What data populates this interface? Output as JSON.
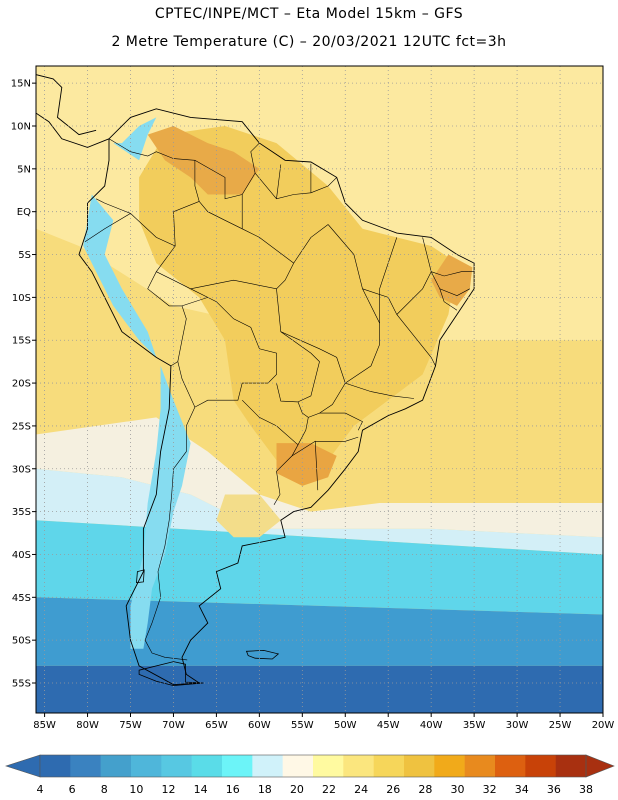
{
  "header": {
    "title": "CPTEC/INPE/MCT –  Eta Model 15km – GFS",
    "subtitle": "2 Metre Temperature (C) – 20/03/2021 12UTC fct=3h"
  },
  "map": {
    "lat_labels": [
      "15N",
      "10N",
      "5N",
      "EQ",
      "5S",
      "10S",
      "15S",
      "20S",
      "25S",
      "30S",
      "35S",
      "40S",
      "45S",
      "50S",
      "55S"
    ],
    "lon_labels": [
      "85W",
      "80W",
      "75W",
      "70W",
      "65W",
      "60W",
      "55W",
      "50W",
      "45W",
      "40W",
      "35W",
      "30W",
      "25W",
      "20W"
    ],
    "lat_range": [
      -58.5,
      17
    ],
    "lon_range": [
      -86,
      -20
    ],
    "grid": "dotted"
  },
  "colorbar": {
    "labels": [
      "4",
      "6",
      "8",
      "10",
      "12",
      "14",
      "16",
      "18",
      "20",
      "22",
      "24",
      "26",
      "28",
      "30",
      "32",
      "34",
      "36",
      "38"
    ],
    "colors": [
      "#2e6bb0",
      "#3a82c0",
      "#44a0cc",
      "#4fb6da",
      "#57c8e2",
      "#5adce8",
      "#6cf4f8",
      "#d0f2fa",
      "#fff8e6",
      "#fffaa0",
      "#fbe67e",
      "#f6d65a",
      "#efc240",
      "#f1aa1a",
      "#e88a1e",
      "#dd6010",
      "#c84208",
      "#a83010"
    ]
  },
  "continent": [
    [
      -77.5,
      8.5
    ],
    [
      -75,
      11
    ],
    [
      -72,
      12
    ],
    [
      -68,
      11
    ],
    [
      -62,
      10.5
    ],
    [
      -60,
      8
    ],
    [
      -57,
      6
    ],
    [
      -54,
      5.8
    ],
    [
      -51,
      4
    ],
    [
      -50,
      1
    ],
    [
      -48,
      -1
    ],
    [
      -44,
      -2.5
    ],
    [
      -40,
      -3
    ],
    [
      -37,
      -5
    ],
    [
      -35,
      -6
    ],
    [
      -35,
      -9
    ],
    [
      -37,
      -12
    ],
    [
      -39,
      -15
    ],
    [
      -39.5,
      -18
    ],
    [
      -41,
      -22
    ],
    [
      -43,
      -23
    ],
    [
      -45,
      -23.8
    ],
    [
      -48,
      -25.5
    ],
    [
      -48.5,
      -28
    ],
    [
      -50,
      -30
    ],
    [
      -52,
      -32.5
    ],
    [
      -54,
      -34.5
    ],
    [
      -56,
      -35
    ],
    [
      -57.5,
      -36
    ],
    [
      -57,
      -38
    ],
    [
      -62,
      -39
    ],
    [
      -62.5,
      -41
    ],
    [
      -65,
      -42
    ],
    [
      -64.5,
      -44
    ],
    [
      -67,
      -46
    ],
    [
      -66,
      -48
    ],
    [
      -68,
      -50
    ],
    [
      -69,
      -52
    ],
    [
      -68.5,
      -54
    ],
    [
      -67,
      -55
    ],
    [
      -70,
      -55.2
    ],
    [
      -74,
      -53
    ],
    [
      -75,
      -50
    ],
    [
      -75.5,
      -46
    ],
    [
      -73.5,
      -42
    ],
    [
      -73.5,
      -37
    ],
    [
      -72,
      -33
    ],
    [
      -71.5,
      -28
    ],
    [
      -70.5,
      -23
    ],
    [
      -70.3,
      -18
    ],
    [
      -72,
      -17
    ],
    [
      -76,
      -14
    ],
    [
      -77.5,
      -11
    ],
    [
      -79.5,
      -7
    ],
    [
      -81,
      -5
    ],
    [
      -80,
      -2
    ],
    [
      -80,
      1
    ],
    [
      -78,
      3
    ],
    [
      -77.5,
      6
    ]
  ],
  "central_america": [
    [
      -77.5,
      8.5
    ],
    [
      -80,
      7.5
    ],
    [
      -83,
      8.5
    ],
    [
      -84.5,
      10.5
    ],
    [
      -86,
      11.5
    ],
    [
      -86,
      16
    ],
    [
      -84,
      15.5
    ],
    [
      -83,
      14.5
    ],
    [
      -83.5,
      11
    ],
    [
      -81,
      9
    ],
    [
      -79,
      9.5
    ]
  ],
  "islands": [
    [
      [
        -74,
        -53.5
      ],
      [
        -70,
        -52.5
      ],
      [
        -68.6,
        -52.8
      ],
      [
        -68.6,
        -54.9
      ],
      [
        -66.5,
        -55
      ],
      [
        -70,
        -55.3
      ],
      [
        -72,
        -54.8
      ],
      [
        -74,
        -54
      ]
    ],
    [
      [
        -61.5,
        -51.3
      ],
      [
        -59.5,
        -51.2
      ],
      [
        -57.8,
        -51.6
      ],
      [
        -58.5,
        -52.2
      ],
      [
        -60.5,
        -52.1
      ],
      [
        -61.3,
        -51.8
      ]
    ],
    [
      [
        -74.2,
        -42
      ],
      [
        -73.4,
        -41.8
      ],
      [
        -73.5,
        -43.2
      ],
      [
        -74.3,
        -43.3
      ]
    ]
  ],
  "borders": [
    [
      [
        -77.5,
        8.5
      ],
      [
        -75,
        7
      ],
      [
        -73,
        6.5
      ],
      [
        -72,
        7
      ],
      [
        -70,
        6.2
      ],
      [
        -67.5,
        6
      ],
      [
        -67.5,
        3
      ],
      [
        -67,
        1.2
      ],
      [
        -70,
        0
      ],
      [
        -69.8,
        -4
      ],
      [
        -72,
        -3
      ],
      [
        -75,
        -0.2
      ],
      [
        -78,
        1
      ],
      [
        -79,
        1.5
      ]
    ],
    [
      [
        -67.5,
        6
      ],
      [
        -64,
        4
      ],
      [
        -64,
        1.5
      ],
      [
        -62,
        2
      ],
      [
        -60.5,
        4.5
      ],
      [
        -61,
        7
      ],
      [
        -60,
        8
      ]
    ],
    [
      [
        -60.5,
        4.5
      ],
      [
        -58,
        1.5
      ],
      [
        -56,
        2
      ],
      [
        -54,
        2.2
      ],
      [
        -52,
        3
      ],
      [
        -51,
        4
      ]
    ],
    [
      [
        -58,
        1.5
      ],
      [
        -57.5,
        5.5
      ]
    ],
    [
      [
        -54,
        2.2
      ],
      [
        -54,
        5.6
      ]
    ],
    [
      [
        -69.8,
        -4
      ],
      [
        -72,
        -7
      ],
      [
        -73,
        -9
      ],
      [
        -70.5,
        -11
      ],
      [
        -69,
        -11
      ],
      [
        -68.5,
        -12.5
      ],
      [
        -69,
        -15
      ],
      [
        -69.5,
        -17.5
      ],
      [
        -70.3,
        -18
      ]
    ],
    [
      [
        -75,
        -0.2
      ],
      [
        -78,
        -2
      ],
      [
        -80.3,
        -3.5
      ]
    ],
    [
      [
        -69,
        -11
      ],
      [
        -66,
        -10
      ],
      [
        -65,
        -10.5
      ],
      [
        -63,
        -12.5
      ],
      [
        -61,
        -13.5
      ],
      [
        -60,
        -16
      ],
      [
        -58,
        -16.5
      ],
      [
        -58,
        -19
      ],
      [
        -59,
        -20
      ],
      [
        -62,
        -20
      ],
      [
        -62.5,
        -22
      ],
      [
        -64,
        -22
      ],
      [
        -66,
        -22
      ],
      [
        -67.5,
        -22.8
      ],
      [
        -69,
        -19.5
      ],
      [
        -69.5,
        -17.5
      ]
    ],
    [
      [
        -67.5,
        -22.8
      ],
      [
        -68.5,
        -25
      ],
      [
        -68.5,
        -28
      ],
      [
        -70,
        -30
      ],
      [
        -70.2,
        -33
      ],
      [
        -70.5,
        -36
      ],
      [
        -71,
        -39
      ],
      [
        -71.8,
        -42
      ],
      [
        -71.5,
        -45
      ],
      [
        -72.5,
        -48
      ],
      [
        -73.3,
        -50
      ],
      [
        -72.5,
        -51.5
      ],
      [
        -71,
        -52
      ],
      [
        -68.4,
        -52.3
      ]
    ],
    [
      [
        -62,
        -22
      ],
      [
        -60,
        -24
      ],
      [
        -58,
        -25
      ],
      [
        -55.5,
        -27.2
      ],
      [
        -54.6,
        -25.5
      ],
      [
        -54.3,
        -24
      ],
      [
        -55,
        -23.5
      ],
      [
        -55.5,
        -22.2
      ],
      [
        -57.5,
        -22.1
      ],
      [
        -58,
        -20
      ]
    ],
    [
      [
        -55.5,
        -27.2
      ],
      [
        -56.2,
        -28.5
      ],
      [
        -58,
        -30.3
      ],
      [
        -57.6,
        -33
      ],
      [
        -58.3,
        -34.2
      ]
    ],
    [
      [
        -56.2,
        -28.5
      ],
      [
        -53.5,
        -26.8
      ],
      [
        -53.2,
        -32.5
      ]
    ],
    [
      [
        -72,
        -7
      ],
      [
        -70,
        -8
      ],
      [
        -68,
        -9
      ],
      [
        -66,
        -10
      ]
    ],
    [
      [
        -68,
        -9
      ],
      [
        -63,
        -8
      ],
      [
        -58,
        -9
      ],
      [
        -57,
        -8
      ],
      [
        -56,
        -6
      ],
      [
        -54,
        -3
      ],
      [
        -52,
        -1.5
      ]
    ],
    [
      [
        -58,
        -9
      ],
      [
        -57.5,
        -14
      ],
      [
        -53,
        -16
      ],
      [
        -51,
        -17
      ],
      [
        -50,
        -20
      ],
      [
        -47,
        -21
      ],
      [
        -44.5,
        -21.5
      ],
      [
        -42,
        -21.8
      ]
    ],
    [
      [
        -57.5,
        -14
      ],
      [
        -54,
        -16.5
      ],
      [
        -53,
        -17.5
      ],
      [
        -53.5,
        -19.5
      ],
      [
        -54,
        -21.5
      ],
      [
        -55.5,
        -22.2
      ]
    ],
    [
      [
        -50,
        -20
      ],
      [
        -51.5,
        -22.5
      ],
      [
        -53,
        -23.5
      ],
      [
        -54.3,
        -24
      ]
    ],
    [
      [
        -53,
        -23.5
      ],
      [
        -50,
        -23.5
      ],
      [
        -48,
        -24.5
      ],
      [
        -48.5,
        -25.5
      ]
    ],
    [
      [
        -53.5,
        -26.8
      ],
      [
        -50,
        -26.8
      ],
      [
        -48.5,
        -26.3
      ]
    ],
    [
      [
        -52,
        -1.5
      ],
      [
        -49,
        -5
      ],
      [
        -48,
        -9
      ],
      [
        -46,
        -13
      ],
      [
        -46,
        -15.5
      ],
      [
        -47,
        -18
      ],
      [
        -50,
        -20
      ]
    ],
    [
      [
        -48,
        -9
      ],
      [
        -45,
        -10
      ],
      [
        -44,
        -12
      ],
      [
        -42,
        -14.5
      ],
      [
        -40,
        -17
      ],
      [
        -39.5,
        -18
      ]
    ],
    [
      [
        -44,
        -12
      ],
      [
        -41,
        -9
      ],
      [
        -40,
        -7
      ],
      [
        -41,
        -3
      ]
    ],
    [
      [
        -46,
        -13
      ],
      [
        -46,
        -9
      ],
      [
        -44,
        -3
      ]
    ],
    [
      [
        -40,
        -7
      ],
      [
        -38.5,
        -7.5
      ],
      [
        -36.5,
        -7
      ],
      [
        -35,
        -7
      ]
    ],
    [
      [
        -40,
        -7
      ],
      [
        -39,
        -9
      ],
      [
        -37,
        -9.8
      ],
      [
        -35.5,
        -9
      ]
    ],
    [
      [
        -39,
        -9
      ],
      [
        -38.5,
        -10.5
      ],
      [
        -37,
        -11.5
      ]
    ],
    [
      [
        -56,
        -6
      ],
      [
        -60,
        -3
      ],
      [
        -62,
        -2
      ],
      [
        -64,
        -1
      ],
      [
        -66,
        0
      ],
      [
        -67,
        1.2
      ]
    ],
    [
      [
        -62,
        -2
      ],
      [
        -62,
        2
      ]
    ]
  ],
  "temperature_zones": [
    {
      "color": "#fce9a0",
      "path": [
        [
          -86,
          17
        ],
        [
          -20,
          17
        ],
        [
          -20,
          -15
        ],
        [
          -52,
          -15
        ],
        [
          -70,
          -11
        ],
        [
          -81,
          -4
        ],
        [
          -86,
          -2
        ]
      ]
    },
    {
      "color": "#f2cd5c",
      "path": [
        [
          -64,
          10
        ],
        [
          -58,
          8
        ],
        [
          -52,
          3
        ],
        [
          -48,
          -2
        ],
        [
          -44,
          -3
        ],
        [
          -40,
          -4
        ],
        [
          -37,
          -6
        ],
        [
          -38,
          -12
        ],
        [
          -41,
          -19
        ],
        [
          -45,
          -22
        ],
        [
          -49,
          -25
        ],
        [
          -52,
          -29
        ],
        [
          -55,
          -30
        ],
        [
          -58,
          -29
        ],
        [
          -61,
          -25
        ],
        [
          -63,
          -22
        ],
        [
          -64,
          -15
        ],
        [
          -67,
          -10
        ],
        [
          -72,
          -6
        ],
        [
          -74,
          -1
        ],
        [
          -74,
          4
        ],
        [
          -71,
          9
        ]
      ]
    },
    {
      "color": "#f5f0e0",
      "path": [
        [
          -86,
          -26
        ],
        [
          -72,
          -24
        ],
        [
          -66,
          -28
        ],
        [
          -60,
          -33
        ],
        [
          -54,
          -35
        ],
        [
          -46,
          -34
        ],
        [
          -20,
          -34
        ],
        [
          -20,
          -38
        ],
        [
          -40,
          -37
        ],
        [
          -52,
          -37
        ],
        [
          -60,
          -37
        ],
        [
          -68,
          -33
        ],
        [
          -76,
          -31
        ],
        [
          -86,
          -30
        ]
      ]
    },
    {
      "color": "#d3eff7",
      "path": [
        [
          -86,
          -30
        ],
        [
          -76,
          -31
        ],
        [
          -68,
          -33
        ],
        [
          -60,
          -37
        ],
        [
          -52,
          -37
        ],
        [
          -40,
          -37
        ],
        [
          -20,
          -38
        ],
        [
          -20,
          -40
        ],
        [
          -86,
          -36
        ]
      ]
    },
    {
      "color": "#5fd6ea",
      "path": [
        [
          -86,
          -36
        ],
        [
          -20,
          -40
        ],
        [
          -20,
          -47
        ],
        [
          -86,
          -45
        ]
      ]
    },
    {
      "color": "#3f9cd0",
      "path": [
        [
          -86,
          -45
        ],
        [
          -20,
          -47
        ],
        [
          -20,
          -53
        ],
        [
          -86,
          -53
        ]
      ]
    },
    {
      "color": "#2e6bb0",
      "path": [
        [
          -86,
          -53
        ],
        [
          -20,
          -53
        ],
        [
          -20,
          -58.5
        ],
        [
          -86,
          -58.5
        ]
      ]
    },
    {
      "color": "#e8aa48",
      "path": [
        [
          -73,
          9
        ],
        [
          -70,
          10
        ],
        [
          -66,
          8
        ],
        [
          -63,
          7
        ],
        [
          -60,
          5
        ],
        [
          -62,
          2
        ],
        [
          -66,
          2
        ],
        [
          -68,
          4
        ],
        [
          -71,
          6
        ]
      ]
    },
    {
      "color": "#e8aa48",
      "path": [
        [
          -38,
          -5
        ],
        [
          -35.2,
          -6.5
        ],
        [
          -35.5,
          -9
        ],
        [
          -37,
          -11
        ],
        [
          -39,
          -10
        ],
        [
          -40,
          -8
        ]
      ]
    },
    {
      "color": "#e9a542",
      "path": [
        [
          -58,
          -27
        ],
        [
          -54,
          -27
        ],
        [
          -51,
          -28.5
        ],
        [
          -52,
          -31
        ],
        [
          -55,
          -32
        ],
        [
          -58,
          -30.5
        ]
      ]
    },
    {
      "color": "#f3dd8a",
      "path": [
        [
          -64,
          -33
        ],
        [
          -60,
          -33
        ],
        [
          -57.5,
          -36
        ],
        [
          -60,
          -38
        ],
        [
          -63,
          -38
        ],
        [
          -65,
          -36
        ]
      ]
    },
    {
      "color": "#86dcf0",
      "path": [
        [
          -71.5,
          -18
        ],
        [
          -70,
          -22
        ],
        [
          -68,
          -27
        ],
        [
          -69,
          -32
        ],
        [
          -70,
          -35
        ],
        [
          -71,
          -40
        ],
        [
          -72.5,
          -44
        ],
        [
          -73,
          -48
        ],
        [
          -73.5,
          -51
        ],
        [
          -75,
          -51
        ],
        [
          -75,
          -46
        ],
        [
          -73.5,
          -40
        ],
        [
          -73,
          -34
        ],
        [
          -72,
          -28
        ],
        [
          -71.5,
          -23
        ]
      ]
    },
    {
      "color": "#86dcf0",
      "path": [
        [
          -79.5,
          2
        ],
        [
          -77,
          -1
        ],
        [
          -78,
          -5
        ],
        [
          -76,
          -9
        ],
        [
          -73,
          -14
        ],
        [
          -72,
          -17
        ],
        [
          -74,
          -15
        ],
        [
          -77,
          -11
        ],
        [
          -79,
          -7
        ],
        [
          -80.5,
          -4
        ],
        [
          -80,
          -1
        ]
      ]
    },
    {
      "color": "#86dcf0",
      "path": [
        [
          -77,
          8
        ],
        [
          -74,
          6
        ],
        [
          -73,
          9
        ],
        [
          -72,
          11
        ],
        [
          -74,
          10
        ],
        [
          -76,
          8
        ]
      ]
    }
  ]
}
